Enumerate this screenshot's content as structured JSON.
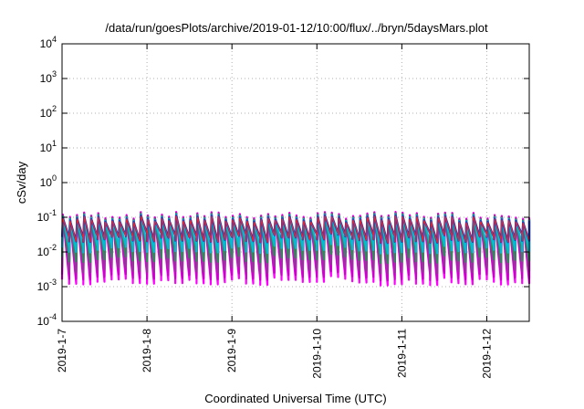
{
  "chart_data": {
    "type": "line",
    "title": "/data/run/goesPlots/archive/2019-01-12/10:00/flux/../bryn/5daysMars.plot",
    "xlabel": "Coordinated Universal Time (UTC)",
    "ylabel": "cSv/day",
    "yscale": "log",
    "ylim_exponents": [
      -4,
      4
    ],
    "y_ticks": [
      {
        "base": "10",
        "exp": "-4"
      },
      {
        "base": "10",
        "exp": "-3"
      },
      {
        "base": "10",
        "exp": "-2"
      },
      {
        "base": "10",
        "exp": "-1"
      },
      {
        "base": "10",
        "exp": "0"
      },
      {
        "base": "10",
        "exp": "1"
      },
      {
        "base": "10",
        "exp": "2"
      },
      {
        "base": "10",
        "exp": "3"
      },
      {
        "base": "10",
        "exp": "4"
      }
    ],
    "x_ticks": [
      "2019-1-7",
      "2019-1-8",
      "2019-1-9",
      "2019-1-10",
      "2019-1-11",
      "2019-1-12"
    ],
    "xlim": [
      "2019-01-07T00:00",
      "2019-01-12T12:00"
    ],
    "grid": true,
    "pattern": {
      "description": "repeating sawtooth pulses",
      "pulses_per_day": 12,
      "peak_value": 0.12,
      "trough_values": [
        0.03,
        0.015,
        0.008,
        0.004,
        0.0025,
        0.0018
      ]
    },
    "series": [
      {
        "color": "#ff00ff"
      },
      {
        "color": "#cc00cc"
      },
      {
        "color": "#9b30a0"
      },
      {
        "color": "#2e8b57"
      },
      {
        "color": "#00bcd4"
      },
      {
        "color": "#1f3fbf"
      },
      {
        "color": "#ff2020"
      }
    ]
  }
}
